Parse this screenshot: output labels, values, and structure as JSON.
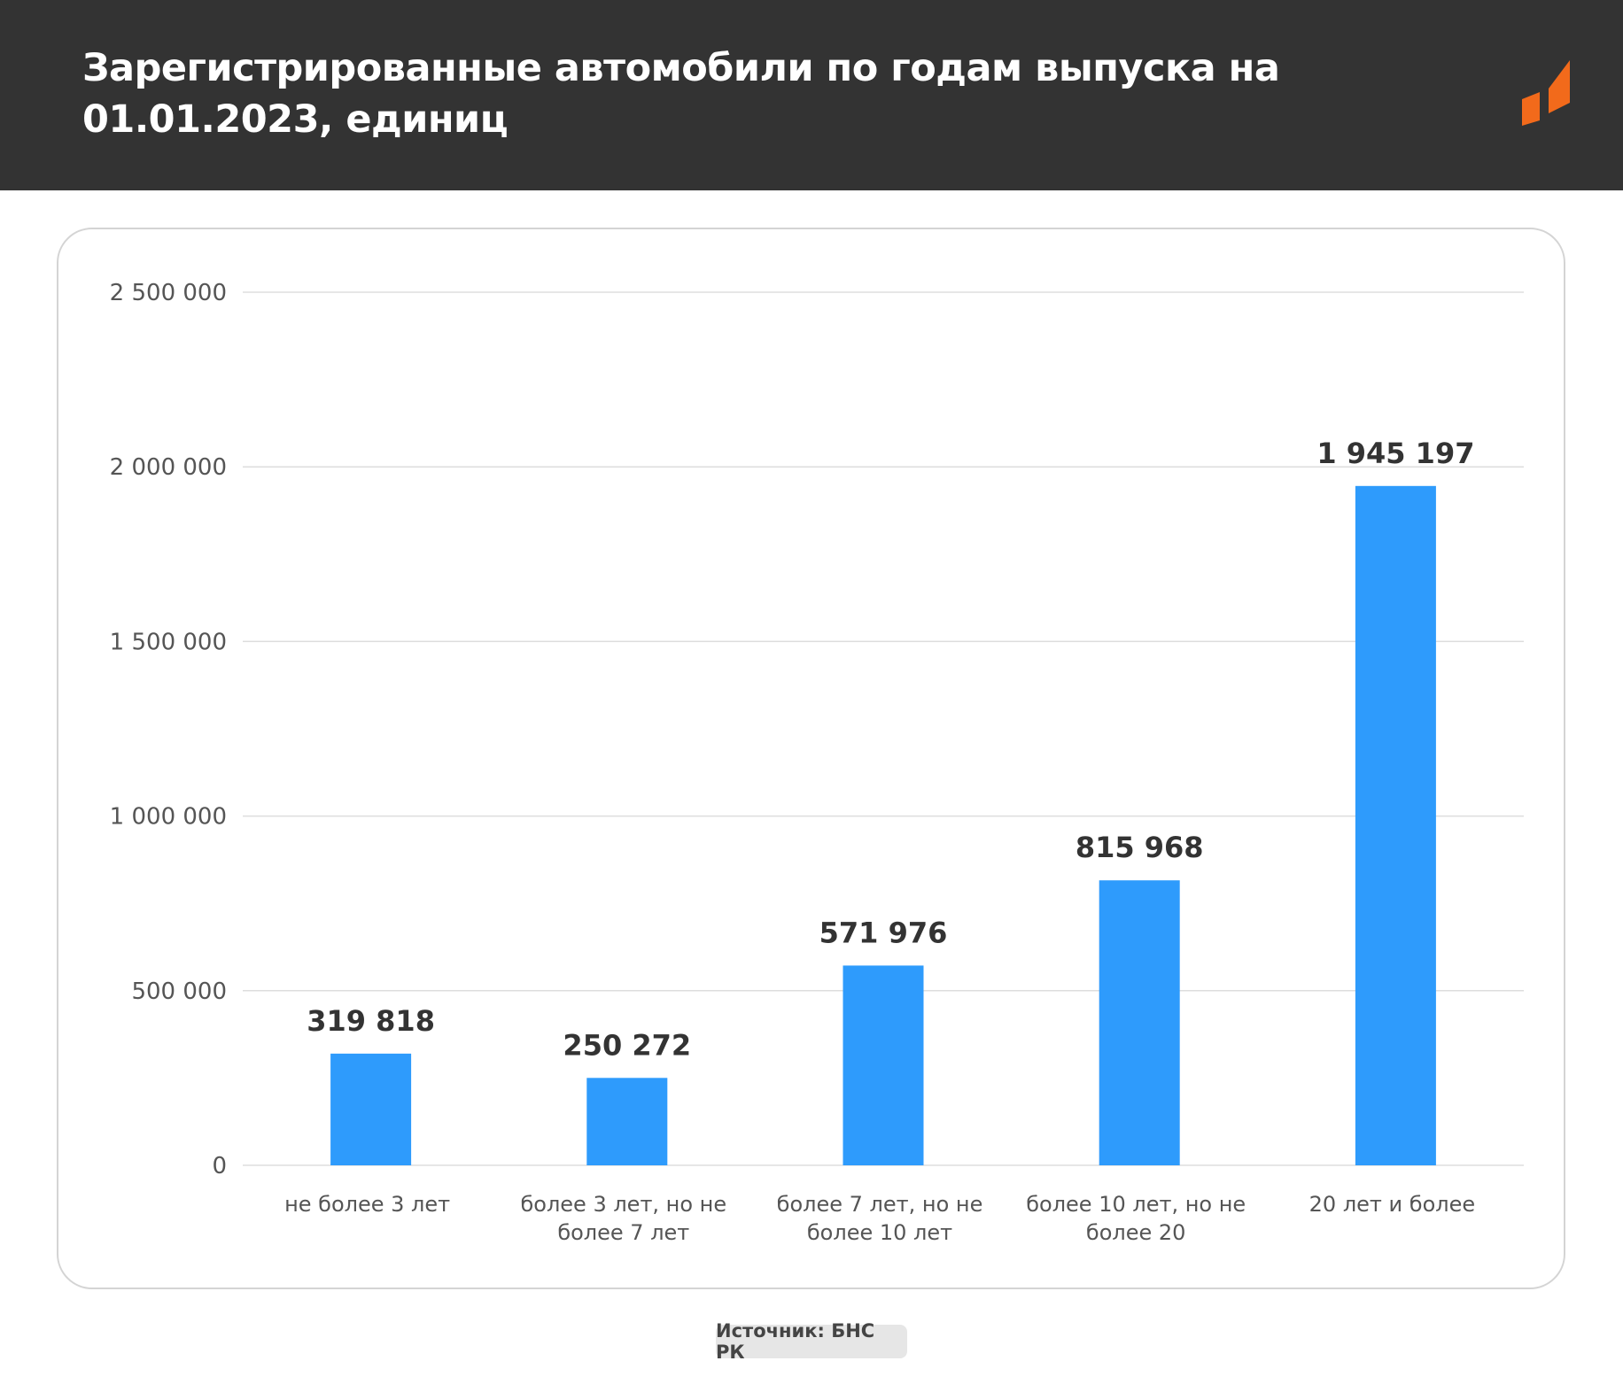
{
  "header": {
    "title": "Зарегистрированные автомобили по годам выпуска на 01.01.2023, единиц"
  },
  "source": "Источник: БНС РК",
  "colors": {
    "header_bg": "#333333",
    "bar": "#2e9bfc",
    "logo": "#f26a1b",
    "grid": "#dddddd",
    "axis_text": "#555555",
    "value_text": "#333333"
  },
  "chart_data": {
    "type": "bar",
    "title": "Зарегистрированные автомобили по годам выпуска на 01.01.2023, единиц",
    "categories": [
      [
        "не более 3 лет"
      ],
      [
        "более 3 лет, но не",
        "более 7 лет"
      ],
      [
        "более 7 лет, но не",
        "более 10 лет"
      ],
      [
        "более 10 лет, но не",
        "более 20"
      ],
      [
        "20 лет и более"
      ]
    ],
    "values": [
      319818,
      250272,
      571976,
      815968,
      1945197
    ],
    "value_labels": [
      "319 818",
      "250 272",
      "571 976",
      "815 968",
      "1 945 197"
    ],
    "yticks": [
      0,
      500000,
      1000000,
      1500000,
      2000000,
      2500000
    ],
    "ytick_labels": [
      "0",
      "500 000",
      "1 000 000",
      "1 500 000",
      "2 000 000",
      "2 500 000"
    ],
    "ylim": [
      0,
      2500000
    ],
    "grid": true,
    "legend": "none"
  }
}
